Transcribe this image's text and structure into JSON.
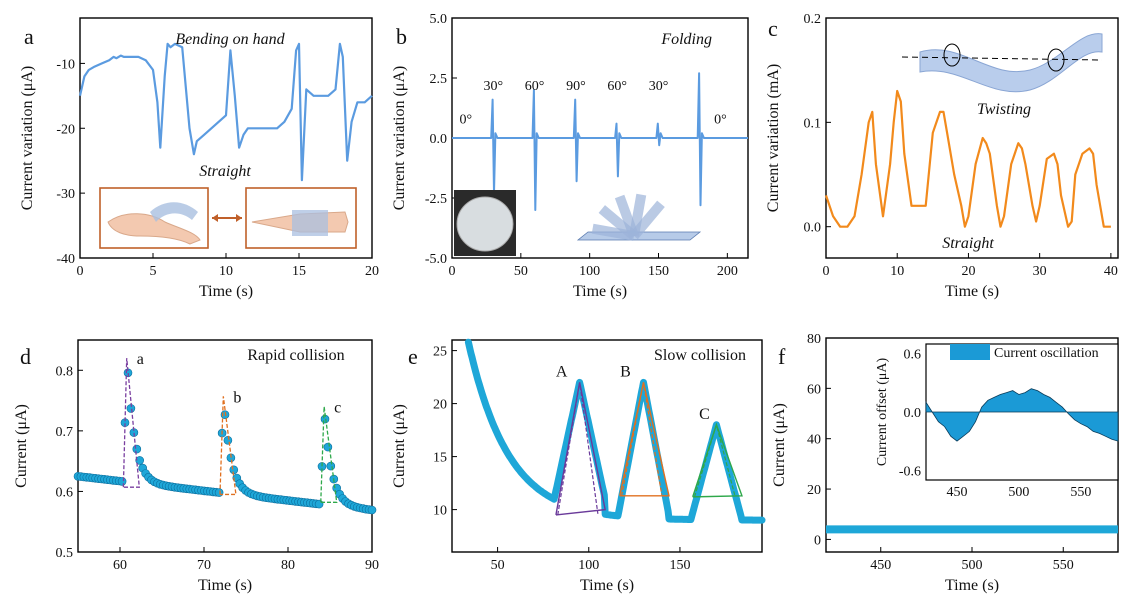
{
  "panels": {
    "a": {
      "letter": "a",
      "top_label": "Bending on hand",
      "bottom_label": "Straight"
    },
    "b": {
      "letter": "b",
      "top_label": "Folding"
    },
    "c": {
      "letter": "c",
      "top_label": "Twisting",
      "bottom_label": "Straight"
    },
    "d": {
      "letter": "d",
      "top_label": "Rapid collision",
      "peak_labels": [
        "a",
        "b",
        "c"
      ]
    },
    "e": {
      "letter": "e",
      "top_label": "Slow collision",
      "peak_labels": [
        "A",
        "B",
        "C"
      ]
    },
    "f": {
      "letter": "f"
    }
  },
  "colors": {
    "blue_line": "#5b9be0",
    "orange_line": "#f28a1c",
    "marker_blue": "#1ea7d8",
    "purple_dash": "#7a3fa0",
    "orange_dash": "#e07020",
    "green_dash": "#2ea84a",
    "inset_fill": "#1b9ad6",
    "hand_frame": "#c0602a",
    "axis": "#000000"
  },
  "chart_data": [
    {
      "id": "a",
      "type": "line",
      "xlabel": "Time (s)",
      "ylabel": "Current variation (μA)",
      "xlim": [
        0,
        20
      ],
      "ylim": [
        -40,
        -3
      ],
      "xticks": [
        0,
        5,
        10,
        15,
        20
      ],
      "yticks": [
        -10,
        -20,
        -30,
        -40
      ],
      "series": [
        {
          "x": [
            0,
            0.3,
            0.6,
            1,
            1.5,
            2,
            2.3,
            2.5,
            2.8,
            3,
            3.5,
            4,
            4.5,
            5,
            5.3,
            5.5,
            5.8,
            6,
            6.2,
            6.5,
            7,
            7.5,
            7.8,
            8,
            8.5,
            9,
            9.5,
            10,
            10.3,
            10.6,
            10.9,
            11.2,
            11.5,
            12,
            12.5,
            13,
            13.5,
            14,
            14.5,
            14.8,
            15,
            15.2,
            15.5,
            16,
            16.5,
            17,
            17.5,
            17.8,
            18,
            18.3,
            18.6,
            19,
            19.5,
            20
          ],
          "y": [
            -15,
            -12,
            -11,
            -10.5,
            -10,
            -9.5,
            -9,
            -9.2,
            -8.8,
            -9,
            -9,
            -9,
            -9.5,
            -11,
            -16,
            -23,
            -12,
            -7,
            -7.5,
            -7,
            -7.5,
            -20,
            -24,
            -22,
            -21,
            -20,
            -19,
            -18,
            -8,
            -15,
            -23,
            -21,
            -20,
            -20,
            -20,
            -20,
            -20,
            -19,
            -17,
            -8,
            -7,
            -28,
            -14,
            -15,
            -15,
            -15,
            -14,
            -7,
            -9,
            -25,
            -19,
            -16,
            -16,
            -15
          ]
        }
      ]
    },
    {
      "id": "b",
      "type": "line",
      "xlabel": "Time (s)",
      "ylabel": "Current variation (μA)",
      "xlim": [
        0,
        215
      ],
      "ylim": [
        -5,
        5
      ],
      "xticks": [
        0,
        50,
        100,
        150,
        200
      ],
      "yticks": [
        5.0,
        2.5,
        0.0,
        -2.5,
        -5.0
      ],
      "annotations": [
        {
          "text": "0°",
          "x": 10,
          "y": 0.6
        },
        {
          "text": "30°",
          "x": 30,
          "y": 2.0
        },
        {
          "text": "60°",
          "x": 60,
          "y": 2.0
        },
        {
          "text": "90°",
          "x": 90,
          "y": 2.0
        },
        {
          "text": "60°",
          "x": 120,
          "y": 2.0
        },
        {
          "text": "30°",
          "x": 150,
          "y": 2.0
        },
        {
          "text": "0°",
          "x": 195,
          "y": 0.6
        }
      ],
      "spikes": [
        {
          "x": 30,
          "up": 1.6,
          "down": -2.3
        },
        {
          "x": 60,
          "up": 2.0,
          "down": -3.0
        },
        {
          "x": 90,
          "up": 1.6,
          "down": -1.8
        },
        {
          "x": 120,
          "up": 0.6,
          "down": -1.6
        },
        {
          "x": 150,
          "up": 0.6,
          "down": -0.3
        },
        {
          "x": 180,
          "up": 2.7,
          "down": -2.8
        }
      ]
    },
    {
      "id": "c",
      "type": "line",
      "xlabel": "Time (s)",
      "ylabel": "Current variation (mA)",
      "xlim": [
        0,
        41
      ],
      "ylim": [
        -0.03,
        0.2
      ],
      "xticks": [
        0,
        10,
        20,
        30,
        40
      ],
      "yticks": [
        0.2,
        0.1,
        0.0
      ],
      "series": [
        {
          "x": [
            0,
            1,
            2,
            3,
            4,
            5,
            6,
            6.5,
            7,
            8,
            9,
            9.5,
            10,
            10.5,
            11,
            12,
            13,
            14,
            15,
            16,
            16.5,
            17,
            18,
            19,
            19.5,
            20,
            21,
            22,
            22.5,
            23,
            24,
            24.5,
            25,
            26,
            27,
            27.5,
            28,
            29,
            29.5,
            30,
            31,
            32,
            32.5,
            33,
            34,
            34.5,
            35,
            36,
            37,
            37.5,
            38,
            39,
            39.5,
            40
          ],
          "y": [
            0.03,
            0.01,
            0.0,
            0.0,
            0.01,
            0.05,
            0.1,
            0.11,
            0.06,
            0.01,
            0.06,
            0.1,
            0.13,
            0.12,
            0.07,
            0.02,
            0.02,
            0.02,
            0.09,
            0.11,
            0.11,
            0.09,
            0.05,
            0.02,
            0.0,
            0.01,
            0.06,
            0.085,
            0.08,
            0.07,
            0.02,
            0.0,
            0.01,
            0.06,
            0.08,
            0.075,
            0.06,
            0.02,
            0.005,
            0.02,
            0.065,
            0.07,
            0.06,
            0.03,
            0.0,
            0.005,
            0.05,
            0.07,
            0.075,
            0.07,
            0.04,
            0.0,
            0.0,
            0.0
          ]
        }
      ]
    },
    {
      "id": "d",
      "type": "scatter",
      "xlabel": "Time (s)",
      "ylabel": "Current (μA)",
      "xlim": [
        55,
        90
      ],
      "ylim": [
        0.5,
        0.85
      ],
      "xticks": [
        60,
        70,
        80,
        90
      ],
      "yticks": [
        0.8,
        0.7,
        0.6,
        0.5
      ],
      "peaks": [
        {
          "label": "a",
          "x": 60.8,
          "y": 0.82,
          "base": 0.607
        },
        {
          "label": "b",
          "x": 72.3,
          "y": 0.757,
          "base": 0.595
        },
        {
          "label": "c",
          "x": 84.3,
          "y": 0.74,
          "base": 0.582
        }
      ]
    },
    {
      "id": "e",
      "type": "scatter",
      "xlabel": "Time (s)",
      "ylabel": "Current (μA)",
      "xlim": [
        25,
        195
      ],
      "ylim": [
        6,
        26
      ],
      "xticks": [
        50,
        100,
        150
      ],
      "yticks": [
        25,
        20,
        15,
        10
      ],
      "peaks": [
        {
          "label": "A",
          "x": 95,
          "y": 22.0
        },
        {
          "label": "B",
          "x": 130,
          "y": 22.0
        },
        {
          "label": "C",
          "x": 170,
          "y": 18.0
        }
      ]
    },
    {
      "id": "f",
      "type": "line",
      "xlabel": "Time (s)",
      "ylabel": "Current (μA)",
      "xlim": [
        420,
        580
      ],
      "ylim": [
        -5,
        80
      ],
      "xticks": [
        450,
        500,
        550
      ],
      "yticks": [
        80,
        60,
        40,
        20,
        0
      ],
      "series": [
        {
          "name": "main",
          "x": [
            420,
            580
          ],
          "y": [
            4,
            4
          ]
        }
      ],
      "inset": {
        "xlabel": "",
        "ylabel": "Current offset (μA)",
        "legend": "Current oscillation",
        "xlim": [
          425,
          580
        ],
        "ylim": [
          -0.7,
          0.7
        ],
        "xticks": [
          450,
          500,
          550
        ],
        "yticks": [
          0.6,
          0.0,
          -0.6
        ],
        "x": [
          425,
          430,
          435,
          440,
          445,
          450,
          455,
          460,
          465,
          470,
          475,
          480,
          485,
          490,
          495,
          500,
          505,
          510,
          515,
          520,
          525,
          530,
          535,
          540,
          545,
          550,
          555,
          560,
          565,
          570,
          575,
          580
        ],
        "y": [
          0.1,
          0.0,
          -0.1,
          -0.15,
          -0.25,
          -0.3,
          -0.25,
          -0.2,
          -0.1,
          0.05,
          0.12,
          0.15,
          0.18,
          0.2,
          0.22,
          0.18,
          0.2,
          0.24,
          0.22,
          0.18,
          0.15,
          0.1,
          0.05,
          -0.02,
          -0.08,
          -0.12,
          -0.15,
          -0.2,
          -0.22,
          -0.25,
          -0.28,
          -0.3
        ]
      }
    }
  ]
}
